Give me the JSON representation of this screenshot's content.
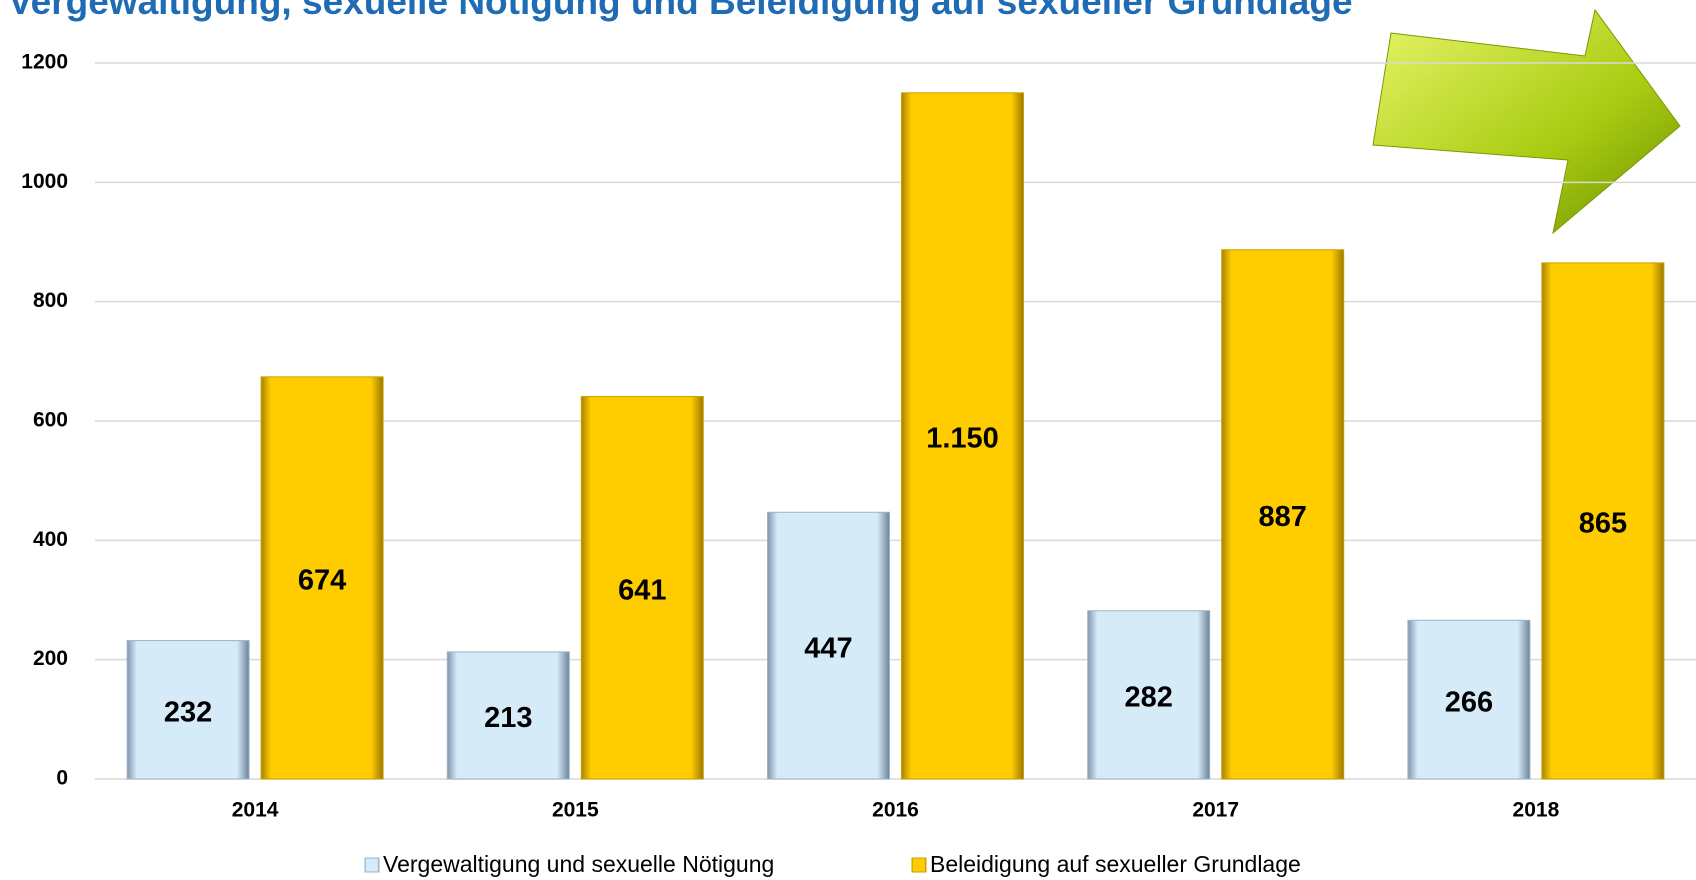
{
  "chart_data": {
    "type": "bar",
    "title": "Vergewaltigung, sexuelle Nötigung und Beleidigung auf sexueller Grundlage",
    "categories": [
      "2014",
      "2015",
      "2016",
      "2017",
      "2018"
    ],
    "series": [
      {
        "name": "Vergewaltigung und sexuelle Nötigung",
        "color": "#d6ebf8",
        "values": [
          232,
          213,
          447,
          282,
          266
        ]
      },
      {
        "name": "Beleidigung auf sexueller Grundlage",
        "color": "#ffcc00",
        "values": [
          674,
          641,
          1150,
          887,
          865
        ],
        "value_labels": [
          "674",
          "641",
          "1.150",
          "887",
          "865"
        ]
      }
    ],
    "ylim": [
      0,
      1200
    ],
    "yticks": [
      0,
      200,
      400,
      600,
      800,
      1000,
      1200
    ],
    "grid": true
  }
}
